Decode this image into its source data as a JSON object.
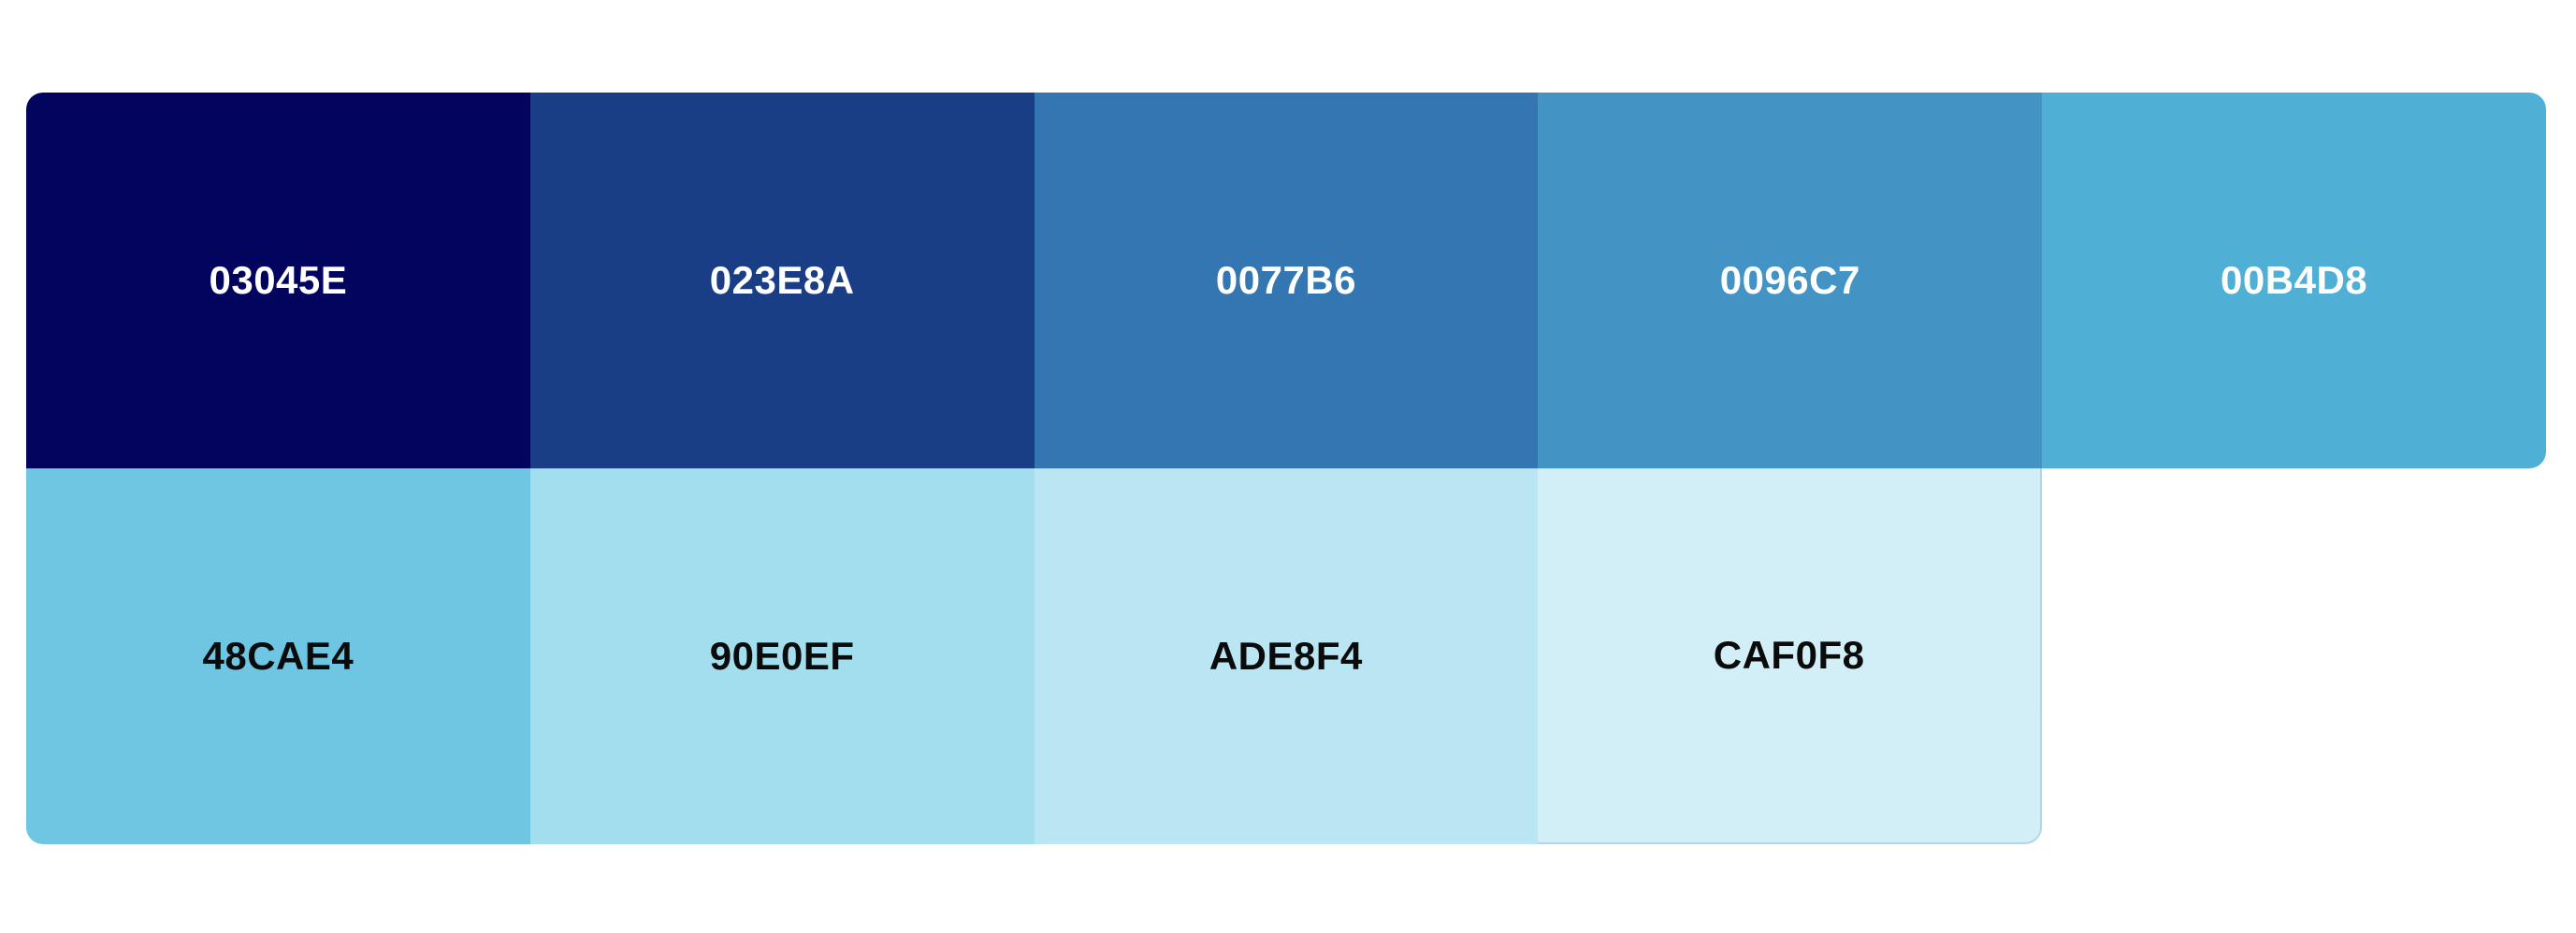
{
  "palette": {
    "swatches": [
      {
        "label": "03045E",
        "color": "#03045E"
      },
      {
        "label": "023E8A",
        "color": "#1A3E86"
      },
      {
        "label": "0077B6",
        "color": "#3476B1"
      },
      {
        "label": "0096C7",
        "color": "#4394C5"
      },
      {
        "label": "00B4D8",
        "color": "#50AFD4"
      },
      {
        "label": "48CAE4",
        "color": "#6FC6E2"
      },
      {
        "label": "90E0EF",
        "color": "#A3DEEE"
      },
      {
        "label": "ADE8F4",
        "color": "#BAE5F2"
      },
      {
        "label": "CAF0F8",
        "color": "#D2EEF7"
      }
    ]
  }
}
